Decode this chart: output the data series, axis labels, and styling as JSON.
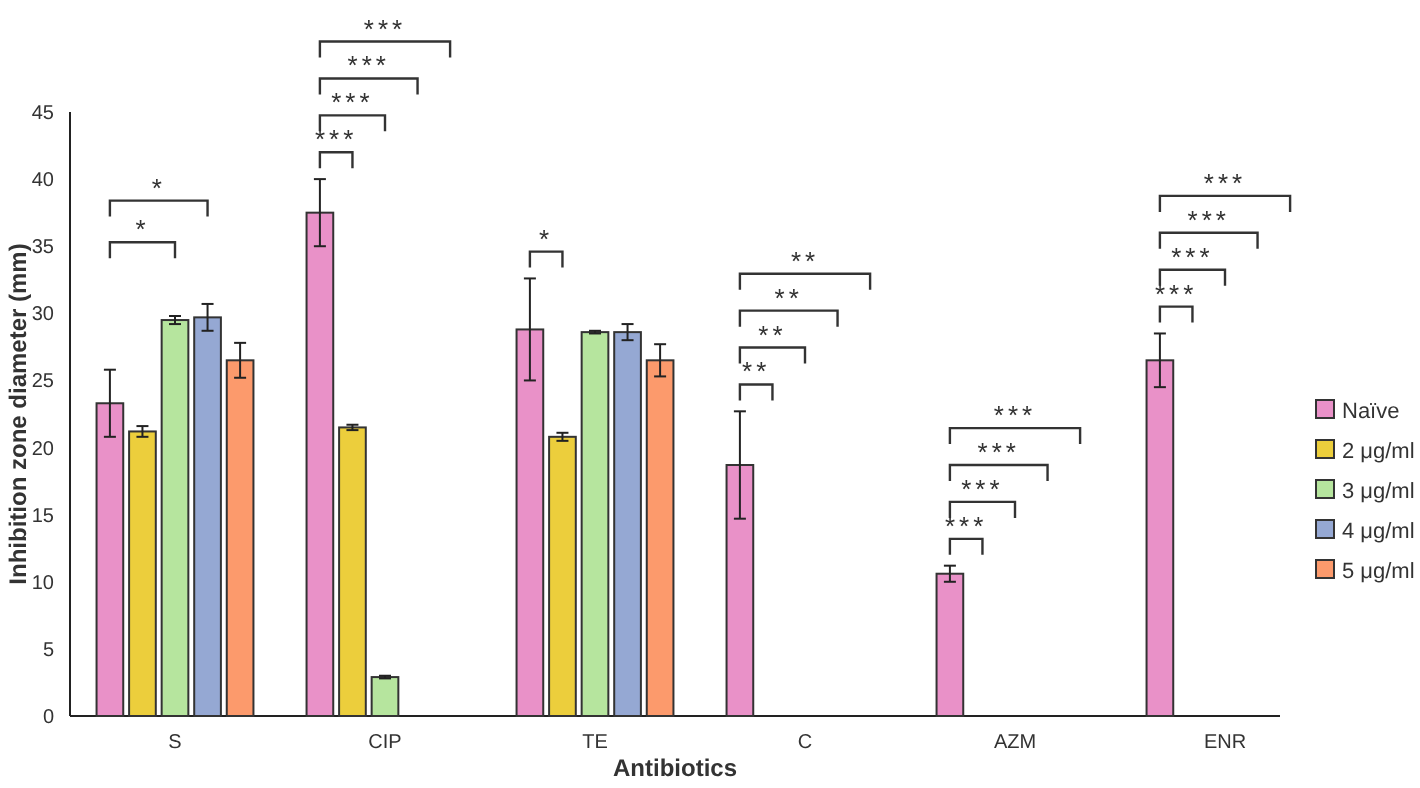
{
  "chart_data": {
    "type": "bar",
    "xlabel": "Antibiotics",
    "ylabel": "Inhibition zone diameter (mm)",
    "categories": [
      "S",
      "CIP",
      "TE",
      "C",
      "AZM",
      "ENR"
    ],
    "series": [
      {
        "name": "Naïve",
        "color": "#e991c8",
        "values": [
          23.3,
          37.5,
          28.8,
          18.7,
          10.6,
          26.5
        ],
        "errors": [
          2.5,
          2.5,
          3.8,
          4,
          0.6,
          2
        ]
      },
      {
        "name": "2 μg/ml",
        "color": "#ecce3c",
        "values": [
          21.2,
          21.5,
          20.8,
          null,
          null,
          null
        ],
        "errors": [
          0.4,
          0.2,
          0.3,
          null,
          null,
          null
        ]
      },
      {
        "name": "3 μg/ml",
        "color": "#b6e59e",
        "values": [
          29.5,
          2.9,
          28.6,
          null,
          null,
          null
        ],
        "errors": [
          0.3,
          0.1,
          0.1,
          null,
          null,
          null
        ]
      },
      {
        "name": "4 μg/ml",
        "color": "#95a8d3",
        "values": [
          29.7,
          null,
          28.6,
          null,
          null,
          null
        ],
        "errors": [
          1,
          null,
          0.6,
          null,
          null,
          null
        ]
      },
      {
        "name": "5 μg/ml",
        "color": "#fc9a6c",
        "values": [
          26.5,
          null,
          26.5,
          null,
          null,
          null
        ],
        "errors": [
          1.3,
          null,
          1.2,
          null,
          null,
          null
        ]
      }
    ],
    "ylim": [
      0,
      45
    ],
    "yticks": [
      0,
      5,
      10,
      15,
      20,
      25,
      30,
      35,
      40,
      45
    ],
    "grid": false,
    "legend": "right",
    "annotations": [
      "*",
      "*",
      "***",
      "***",
      "***",
      "***",
      "*",
      "**",
      "**",
      "**",
      "**",
      "***",
      "***",
      "***",
      "***",
      "***",
      "***",
      "***",
      "***"
    ]
  }
}
